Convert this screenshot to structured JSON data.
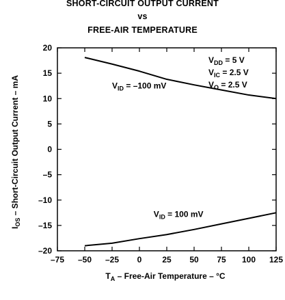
{
  "chart_data": {
    "type": "line",
    "title_lines": [
      "SHORT-CIRCUIT OUTPUT CURRENT",
      "vs",
      "FREE-AIR TEMPERATURE"
    ],
    "xlabel": {
      "sym": "T",
      "sub": "A",
      "rest": " – Free-Air Temperature – °C"
    },
    "ylabel": {
      "sym": "I",
      "sub": "OS",
      "rest": " – Short-Circuit Output Current – mA"
    },
    "xlim": [
      -75,
      125
    ],
    "ylim": [
      -20,
      20
    ],
    "xticks": [
      -75,
      -50,
      -25,
      0,
      25,
      50,
      75,
      100,
      125
    ],
    "yticks": [
      -20,
      -15,
      -10,
      -5,
      0,
      5,
      10,
      15,
      20
    ],
    "grid": false,
    "conditions": [
      {
        "sym": "V",
        "sub": "DD",
        "rest": " = 5 V"
      },
      {
        "sym": "V",
        "sub": "IC",
        "rest": " = 2.5 V"
      },
      {
        "sym": "V",
        "sub": "O",
        "rest": " = 2.5 V"
      }
    ],
    "series": [
      {
        "label": {
          "sym": "V",
          "sub": "ID",
          "rest": " = –100 mV"
        },
        "label_at": [
          -25,
          12
        ],
        "x": [
          -50,
          -25,
          0,
          25,
          50,
          75,
          100,
          125
        ],
        "y": [
          18.1,
          16.8,
          15.4,
          13.8,
          12.7,
          11.7,
          10.7,
          10.0
        ]
      },
      {
        "label": {
          "sym": "V",
          "sub": "ID",
          "rest": " = 100 mV"
        },
        "label_at": [
          13,
          -13.3
        ],
        "x": [
          -50,
          -25,
          0,
          25,
          50,
          75,
          100,
          125
        ],
        "y": [
          -19.0,
          -18.5,
          -17.6,
          -16.8,
          -15.8,
          -14.7,
          -13.6,
          -12.5
        ]
      }
    ]
  }
}
